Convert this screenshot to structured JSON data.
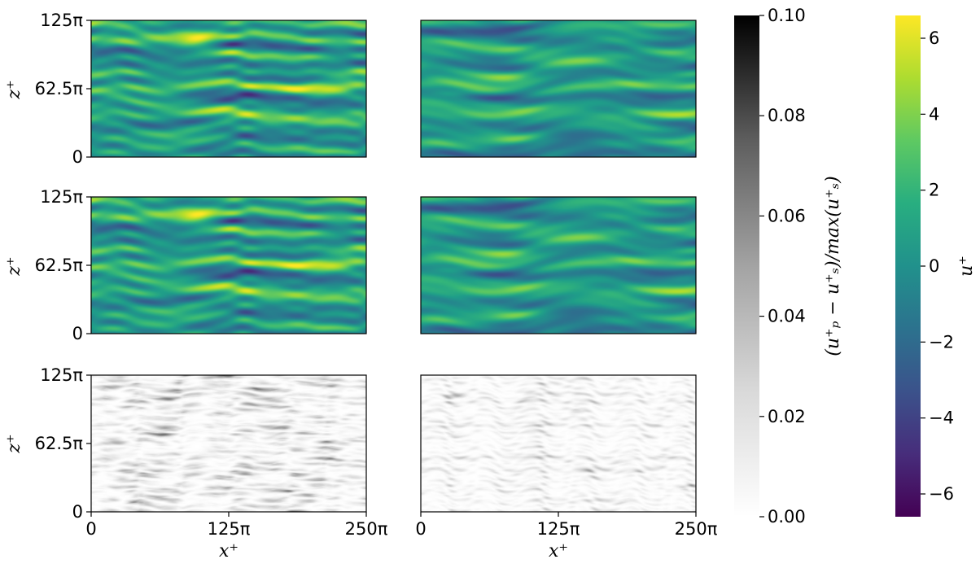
{
  "chart_data": {
    "type": "heatmap",
    "panels": [
      {
        "row": 0,
        "col": 0,
        "variable": "u+",
        "colormap": "viridis",
        "seed": 11
      },
      {
        "row": 0,
        "col": 1,
        "variable": "u+",
        "colormap": "viridis",
        "seed": 23
      },
      {
        "row": 1,
        "col": 0,
        "variable": "u+",
        "colormap": "viridis",
        "seed": 11
      },
      {
        "row": 1,
        "col": 1,
        "variable": "u+",
        "colormap": "viridis",
        "seed": 23
      },
      {
        "row": 2,
        "col": 0,
        "variable": "error",
        "colormap": "gray_r",
        "seed": 11
      },
      {
        "row": 2,
        "col": 1,
        "variable": "error",
        "colormap": "gray_r",
        "seed": 23
      }
    ],
    "x_ticks": [
      "0",
      "125π",
      "250π"
    ],
    "z_ticks": [
      "0",
      "62.5π",
      "125π"
    ],
    "xlabel": "x⁺",
    "zlabel": "z⁺",
    "colorbars": [
      {
        "name": "error",
        "label": "(u⁺ₚ − u⁺ₛ)/max(u⁺ₛ)",
        "range": [
          0.0,
          0.1
        ],
        "ticks": [
          "0.00",
          "0.02",
          "0.04",
          "0.06",
          "0.08",
          "0.10"
        ],
        "colormap": "gray_r"
      },
      {
        "name": "velocity",
        "label": "u⁺",
        "range": [
          -6.6,
          6.6
        ],
        "ticks": [
          "−6",
          "−4",
          "−2",
          "0",
          "2",
          "4",
          "6"
        ],
        "colormap": "viridis"
      }
    ]
  }
}
